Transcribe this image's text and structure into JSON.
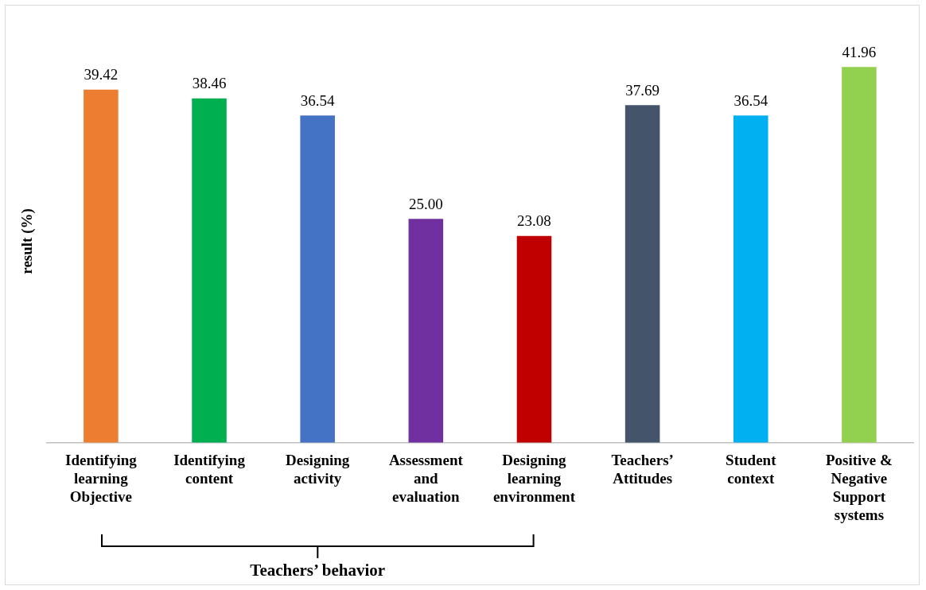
{
  "chart_data": {
    "type": "bar",
    "ylabel": "result (%)",
    "categories": [
      "Identifying learning Objective",
      "Identifying content",
      "Designing activity",
      "Assessment and evaluation",
      "Designing learning environment",
      "Teachers’ Attitudes",
      "Student context",
      "Positive & Negative Support systems"
    ],
    "values": [
      39.42,
      38.46,
      36.54,
      25.0,
      23.08,
      37.69,
      36.54,
      41.96
    ],
    "colors": [
      "#ed7d31",
      "#00b050",
      "#4472c4",
      "#7030a0",
      "#c00000",
      "#44546a",
      "#00b0f0",
      "#92d050"
    ],
    "value_labels": [
      "39.42",
      "38.46",
      "36.54",
      "25.00",
      "23.08",
      "37.69",
      "36.54",
      "41.96"
    ],
    "annotations": [
      "Teachers’ behavior"
    ],
    "grid": false,
    "legend": false
  }
}
